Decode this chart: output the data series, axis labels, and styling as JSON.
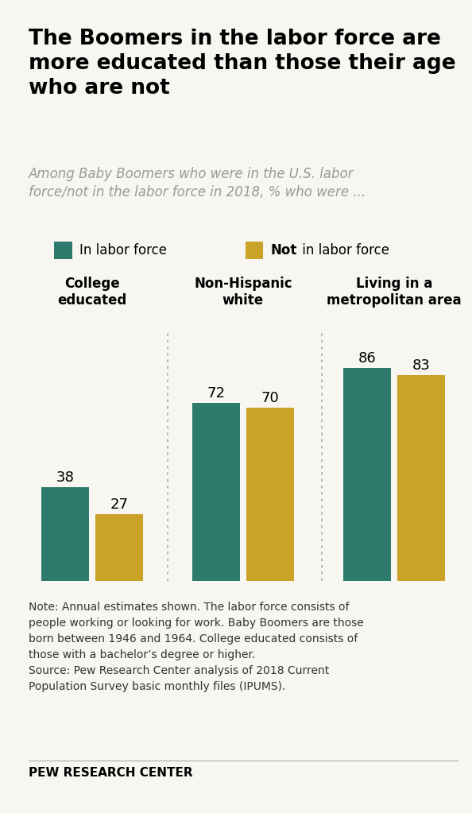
{
  "title": "The Boomers in the labor force are\nmore educated than those their age\nwho are not",
  "subtitle": "Among Baby Boomers who were in the U.S. labor\nforce/not in the labor force in 2018, % who were ...",
  "categories": [
    "College\neducated",
    "Non-Hispanic\nwhite",
    "Living in a\nmetropolitan area"
  ],
  "in_labor_force": [
    38,
    72,
    86
  ],
  "not_in_labor_force": [
    27,
    70,
    83
  ],
  "color_in": "#2e7b6e",
  "color_not": "#c9a227",
  "legend_in": "In labor force",
  "legend_not_bold": "Not",
  "legend_not_rest": " in labor force",
  "note_line1": "Note: Annual estimates shown. The labor force consists of",
  "note_line2": "people working or looking for work. Baby Boomers are those",
  "note_line3": "born between 1946 and 1964. College educated consists of",
  "note_line4": "those with a bachelor’s degree or higher.",
  "note_line5": "Source: Pew Research Center analysis of 2018 Current",
  "note_line6": "Population Survey basic monthly files (IPUMS).",
  "source_label": "PEW RESEARCH CENTER",
  "background_color": "#f8f6f0",
  "bar_color_in": "#2e7b6e",
  "bar_color_not": "#c9a227",
  "ylim": [
    0,
    100
  ],
  "title_fontsize": 19,
  "subtitle_fontsize": 12,
  "cat_label_fontsize": 12,
  "value_fontsize": 13,
  "legend_fontsize": 12,
  "note_fontsize": 10
}
